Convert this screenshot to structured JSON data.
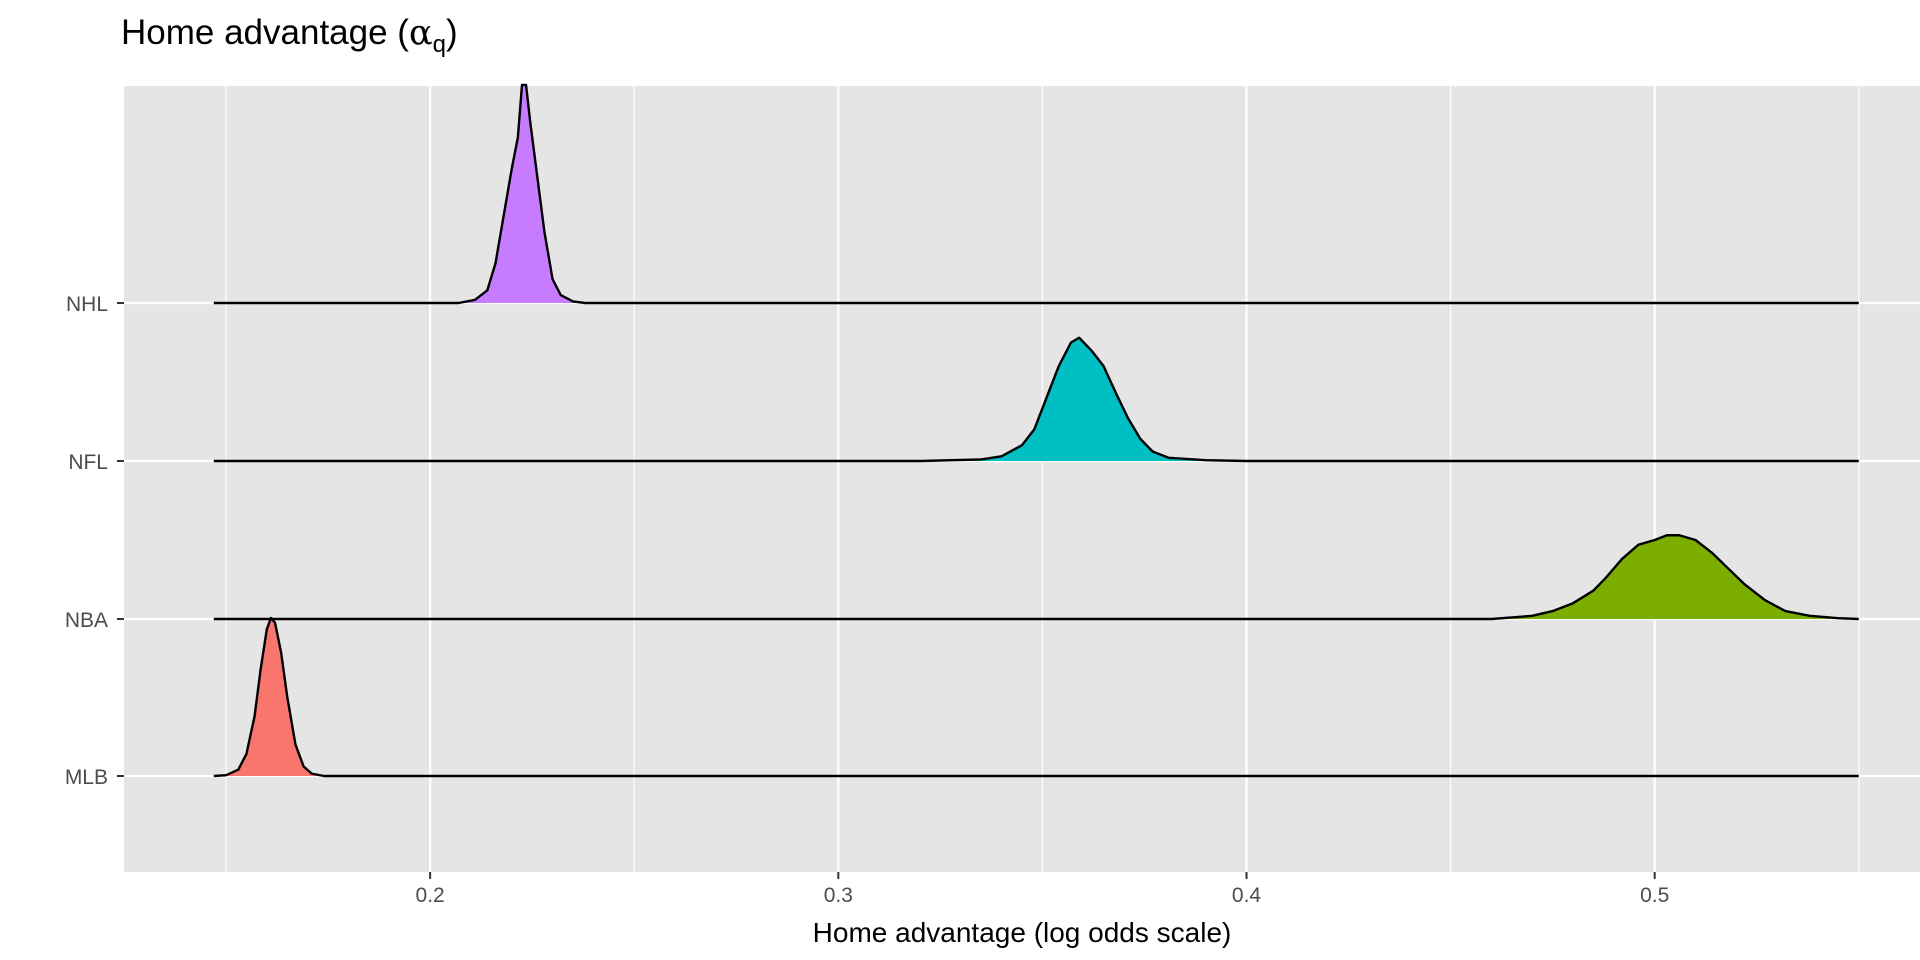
{
  "chart_data": {
    "type": "ridgeline",
    "title": "Home advantage (",
    "title_symbol": "α",
    "title_subscript": "q",
    "title_close": ")",
    "xlabel": "Home advantage (log odds scale)",
    "ylabel": "",
    "xlim": [
      0.125,
      0.565
    ],
    "x_ticks": [
      0.2,
      0.3,
      0.4,
      0.5
    ],
    "x_tick_labels": [
      "0.2",
      "0.3",
      "0.4",
      "0.5"
    ],
    "x_minor_ticks": [
      0.15,
      0.25,
      0.35,
      0.45,
      0.55
    ],
    "line_range": [
      0.147,
      0.55
    ],
    "categories": [
      "MLB",
      "NBA",
      "NFL",
      "NHL"
    ],
    "grid": true,
    "background_color": "#e5e5e5",
    "grid_color": "#ffffff",
    "series": [
      {
        "name": "MLB",
        "color": "#f8766d",
        "profile": [
          [
            0.147,
            0.0
          ],
          [
            0.15,
            0.005
          ],
          [
            0.153,
            0.04
          ],
          [
            0.155,
            0.14
          ],
          [
            0.157,
            0.38
          ],
          [
            0.1585,
            0.68
          ],
          [
            0.16,
            0.93
          ],
          [
            0.161,
            1.0
          ],
          [
            0.162,
            0.97
          ],
          [
            0.1635,
            0.78
          ],
          [
            0.165,
            0.5
          ],
          [
            0.167,
            0.2
          ],
          [
            0.169,
            0.06
          ],
          [
            0.171,
            0.015
          ],
          [
            0.174,
            0.0
          ],
          [
            0.55,
            0.0
          ]
        ]
      },
      {
        "name": "NBA",
        "color": "#7cae00",
        "profile": [
          [
            0.147,
            0.0
          ],
          [
            0.46,
            0.0
          ],
          [
            0.47,
            0.02
          ],
          [
            0.475,
            0.05
          ],
          [
            0.48,
            0.1
          ],
          [
            0.485,
            0.18
          ],
          [
            0.488,
            0.26
          ],
          [
            0.492,
            0.38
          ],
          [
            0.496,
            0.47
          ],
          [
            0.5,
            0.5
          ],
          [
            0.503,
            0.53
          ],
          [
            0.506,
            0.53
          ],
          [
            0.51,
            0.5
          ],
          [
            0.514,
            0.42
          ],
          [
            0.518,
            0.32
          ],
          [
            0.522,
            0.22
          ],
          [
            0.527,
            0.12
          ],
          [
            0.532,
            0.05
          ],
          [
            0.538,
            0.02
          ],
          [
            0.545,
            0.005
          ],
          [
            0.55,
            0.0
          ]
        ]
      },
      {
        "name": "NFL",
        "color": "#00bfc4",
        "profile": [
          [
            0.147,
            0.0
          ],
          [
            0.32,
            0.0
          ],
          [
            0.335,
            0.01
          ],
          [
            0.34,
            0.03
          ],
          [
            0.345,
            0.1
          ],
          [
            0.348,
            0.2
          ],
          [
            0.351,
            0.4
          ],
          [
            0.354,
            0.6
          ],
          [
            0.357,
            0.75
          ],
          [
            0.359,
            0.78
          ],
          [
            0.362,
            0.7
          ],
          [
            0.365,
            0.6
          ],
          [
            0.368,
            0.43
          ],
          [
            0.371,
            0.27
          ],
          [
            0.374,
            0.14
          ],
          [
            0.377,
            0.06
          ],
          [
            0.381,
            0.02
          ],
          [
            0.39,
            0.005
          ],
          [
            0.4,
            0.0
          ],
          [
            0.55,
            0.0
          ]
        ]
      },
      {
        "name": "NHL",
        "color": "#c77cff",
        "profile": [
          [
            0.147,
            0.0
          ],
          [
            0.207,
            0.0
          ],
          [
            0.211,
            0.02
          ],
          [
            0.214,
            0.08
          ],
          [
            0.216,
            0.25
          ],
          [
            0.218,
            0.55
          ],
          [
            0.22,
            0.85
          ],
          [
            0.2215,
            1.05
          ],
          [
            0.2225,
            1.38
          ],
          [
            0.2235,
            1.38
          ],
          [
            0.2245,
            1.15
          ],
          [
            0.226,
            0.85
          ],
          [
            0.228,
            0.45
          ],
          [
            0.23,
            0.15
          ],
          [
            0.232,
            0.05
          ],
          [
            0.235,
            0.01
          ],
          [
            0.238,
            0.0
          ],
          [
            0.55,
            0.0
          ]
        ]
      }
    ]
  }
}
